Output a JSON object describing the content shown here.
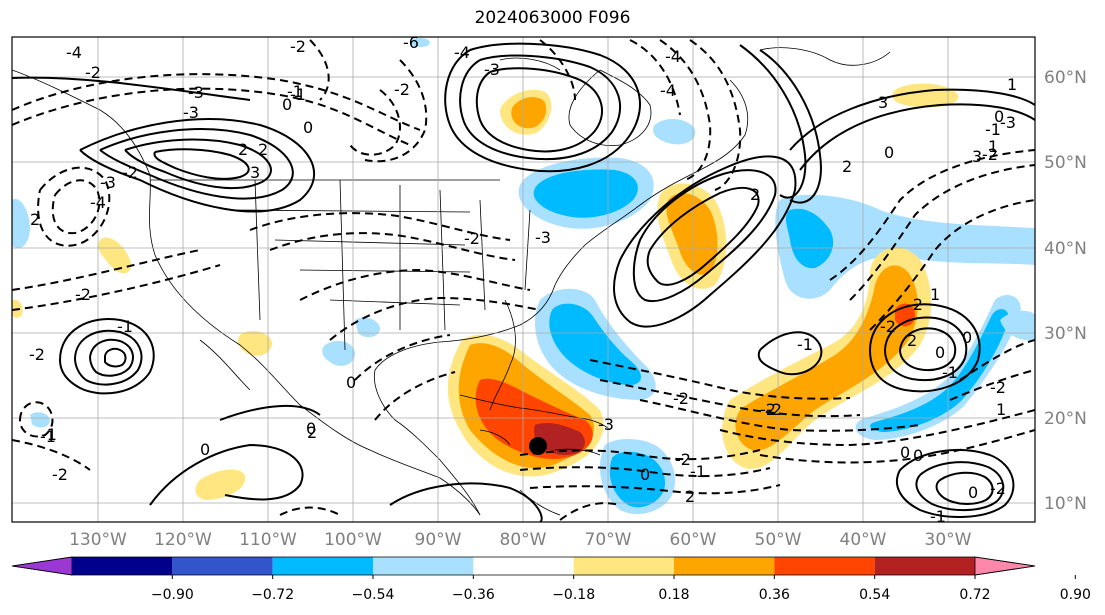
{
  "title": "2024063000 F096",
  "lon_labels": [
    "130°W",
    "120°W",
    "110°W",
    "100°W",
    "90°W",
    "80°W",
    "70°W",
    "60°W",
    "50°W",
    "40°W",
    "30°W"
  ],
  "lat_labels": [
    "60°N",
    "50°N",
    "40°N",
    "30°N",
    "20°N",
    "10°N"
  ],
  "contour_labels": [
    "-4",
    "-2",
    "-3",
    "-3",
    "-2",
    "-1",
    "-2",
    "0",
    "2",
    "2",
    "3",
    "-4",
    "-3",
    "-2",
    "2",
    "-6",
    "-4",
    "-3",
    "-2",
    "-1",
    "0",
    "-2",
    "-3",
    "-4",
    "-4",
    "1",
    "2",
    "3",
    "-1",
    "-2",
    "-3",
    "0",
    "2",
    "1",
    "0",
    "3",
    "-2",
    "-1",
    "-2",
    "-2",
    "2",
    "-2",
    "0",
    "-3",
    "-2",
    "1",
    "-1",
    "-2",
    "0",
    "1",
    "0",
    "-2",
    "-1",
    "0",
    "0",
    "-2",
    "-1",
    "0",
    "2",
    "-1",
    "-2",
    "0",
    "0",
    "2",
    "-1",
    "-2",
    "-1",
    "0"
  ],
  "colorbar": {
    "tick_labels": [
      "−0.90",
      "−0.72",
      "−0.54",
      "−0.36",
      "−0.18",
      "0.18",
      "0.36",
      "0.54",
      "0.72",
      "0.90"
    ],
    "colors": [
      "#9b37d4",
      "#00008a",
      "#3355cc",
      "#00bbff",
      "#aae0ff",
      "#ffffff",
      "#ffe680",
      "#ffa500",
      "#ff4500",
      "#b22222",
      "#ff88aa"
    ]
  },
  "marker": "storm-center"
}
